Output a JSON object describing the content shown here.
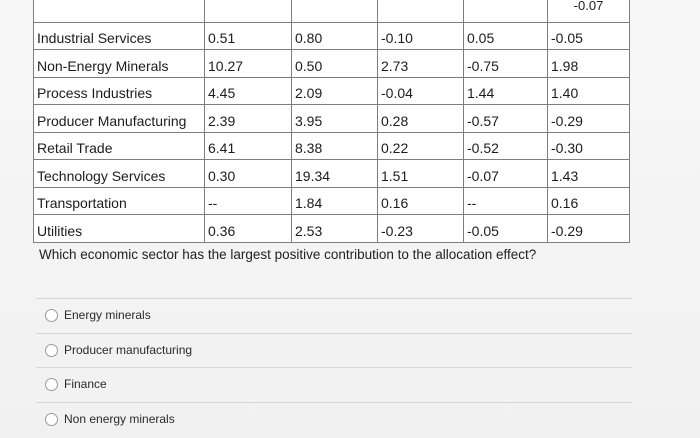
{
  "table": {
    "top_partial": "-0.07",
    "rows": [
      {
        "sector": "Industrial Services",
        "v1": "0.51",
        "v2": "0.80",
        "v3": "-0.10",
        "v4": "0.05",
        "v5": "-0.05"
      },
      {
        "sector": "Non-Energy Minerals",
        "v1": "10.27",
        "v2": "0.50",
        "v3": "2.73",
        "v4": "-0.75",
        "v5": "1.98"
      },
      {
        "sector": "Process Industries",
        "v1": "4.45",
        "v2": "2.09",
        "v3": "-0.04",
        "v4": "1.44",
        "v5": "1.40"
      },
      {
        "sector": "Producer Manufacturing",
        "v1": "2.39",
        "v2": "3.95",
        "v3": "0.28",
        "v4": "-0.57",
        "v5": "-0.29"
      },
      {
        "sector": "Retail Trade",
        "v1": "6.41",
        "v2": "8.38",
        "v3": "0.22",
        "v4": "-0.52",
        "v5": "-0.30"
      },
      {
        "sector": "Technology Services",
        "v1": "0.30",
        "v2": "19.34",
        "v3": "1.51",
        "v4": "-0.07",
        "v5": "1.43"
      },
      {
        "sector": "Transportation",
        "v1": "--",
        "v2": "1.84",
        "v3": "0.16",
        "v4": "--",
        "v5": "0.16"
      },
      {
        "sector": "Utilities",
        "v1": "0.36",
        "v2": "2.53",
        "v3": "-0.23",
        "v4": "-0.05",
        "v5": "-0.29"
      }
    ]
  },
  "question": "Which economic sector has the largest positive contribution to the allocation effect?",
  "options": [
    {
      "label": "Energy minerals"
    },
    {
      "label": "Producer manufacturing"
    },
    {
      "label": "Finance"
    },
    {
      "label": "Non energy minerals"
    }
  ]
}
